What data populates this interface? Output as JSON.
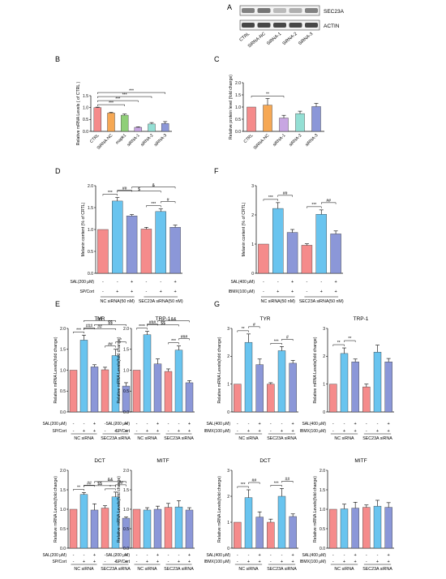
{
  "panel_letters": [
    "A",
    "B",
    "C",
    "D",
    "E",
    "F",
    "G"
  ],
  "colors": {
    "CTRL": "#f58b8b",
    "SiRNA-NC": "#f6a854",
    "mapk1": "#8fcf78",
    "siRNA-1": "#c8a6e2",
    "siRNA-2": "#93dfd4",
    "siRNA-3": "#8b97d8",
    "blue": "#69c4ef"
  },
  "western": {
    "band_labels": [
      "SEC23A",
      "ACTIN"
    ],
    "lanes": [
      "CTRL",
      "SiRNA-NC",
      "SiRNA-1",
      "SiRNA-2",
      "SiRNA-3"
    ],
    "sec23a_intensity": [
      0.55,
      0.6,
      0.3,
      0.35,
      0.55
    ],
    "actin_intensity": [
      0.8,
      0.8,
      0.8,
      0.8,
      0.8
    ]
  },
  "chart_data": [
    {
      "id": "B",
      "type": "bar",
      "ylabel": "Relative mRNA Levels ( of CTRL )",
      "ylim": [
        0,
        1.5
      ],
      "yticks": [
        "0.0",
        "0.5",
        "1.0",
        "1.5"
      ],
      "categories": [
        "CTRL",
        "SiRNA-NC",
        "mapk1",
        "siRNA-1",
        "siRNA-2",
        "siRNA-3"
      ],
      "values": [
        1.0,
        0.77,
        0.68,
        0.17,
        0.31,
        0.33
      ],
      "errors": [
        0.02,
        0.03,
        0.05,
        0.02,
        0.06,
        0.08
      ],
      "colors": [
        "#f58b8b",
        "#f6a854",
        "#8fcf78",
        "#c8a6e2",
        "#93dfd4",
        "#8b97d8"
      ],
      "annotations": [
        "***",
        "***",
        "***",
        "***"
      ]
    },
    {
      "id": "C",
      "type": "bar",
      "ylabel": "Relative protein level (fold change)",
      "ylim": [
        0,
        2.0
      ],
      "yticks": [
        "0.0",
        "0.5",
        "1.0",
        "1.5",
        "2.0"
      ],
      "categories": [
        "CTRL",
        "SiRNA-NC",
        "siRNA-1",
        "siRNA-2",
        "siRNA-3"
      ],
      "values": [
        1.0,
        1.08,
        0.55,
        0.73,
        1.02
      ],
      "errors": [
        0.0,
        0.27,
        0.11,
        0.1,
        0.13
      ],
      "colors": [
        "#f58b8b",
        "#f6a854",
        "#c8a6e2",
        "#93dfd4",
        "#8b97d8"
      ],
      "annotations": [
        "**"
      ]
    },
    {
      "id": "D",
      "type": "bar",
      "ylabel": "Melanin content (% of CRTL)",
      "ylim": [
        0,
        2.0
      ],
      "yticks": [
        "0.0",
        "0.5",
        "1.0",
        "1.5",
        "2.0"
      ],
      "values": [
        1.0,
        1.65,
        1.31,
        1.01,
        1.41,
        1.05
      ],
      "errors": [
        0.0,
        0.08,
        0.03,
        0.04,
        0.06,
        0.05
      ],
      "colors": [
        "#f58b8b",
        "#69c4ef",
        "#8b97d8",
        "#f58b8b",
        "#69c4ef",
        "#8b97d8"
      ],
      "row_labels": [
        "SAL(200 μM)",
        "SP/Cort"
      ],
      "row_signs": [
        [
          "-",
          "-",
          "+",
          "-",
          "-",
          "+"
        ],
        [
          "-",
          "+",
          "+",
          "-",
          "+",
          "+"
        ]
      ],
      "group_labels": [
        "NC siRNA(50 nM)",
        "SEC23A siRNA(50 nM)"
      ],
      "annotations": [
        "***",
        "##",
        "***",
        "#",
        "$",
        "&"
      ]
    },
    {
      "id": "F",
      "type": "bar",
      "ylabel": "Melanin content (% of CRTL)",
      "ylim": [
        0,
        3.0
      ],
      "yticks": [
        "0",
        "1",
        "2",
        "3"
      ],
      "values": [
        1.0,
        2.22,
        1.4,
        0.96,
        2.02,
        1.35
      ],
      "errors": [
        0.0,
        0.2,
        0.1,
        0.05,
        0.15,
        0.1
      ],
      "colors": [
        "#f58b8b",
        "#69c4ef",
        "#8b97d8",
        "#f58b8b",
        "#69c4ef",
        "#8b97d8"
      ],
      "row_labels": [
        "SAL(400 μM)",
        "IBMX(100 μM)"
      ],
      "row_signs": [
        [
          "-",
          "-",
          "+",
          "-",
          "-",
          "+"
        ],
        [
          "-",
          "+",
          "+",
          "-",
          "+",
          "+"
        ]
      ],
      "group_labels": [
        "NC siRNA(50 nM)",
        "SEC23A siRNA(50 nM)"
      ],
      "annotations": [
        "***",
        "##",
        "***",
        "##"
      ]
    },
    {
      "id": "E1",
      "type": "bar",
      "title": "TYR",
      "ylabel": "Relative mRNA Levels(fold change)",
      "ylim": [
        0,
        2.0
      ],
      "yticks": [
        "0.0",
        "0.5",
        "1.0",
        "1.5",
        "2.0"
      ],
      "values": [
        1.0,
        1.72,
        1.08,
        1.01,
        1.35,
        0.62
      ],
      "errors": [
        0.0,
        0.12,
        0.05,
        0.06,
        0.15,
        0.08
      ],
      "colors": [
        "#f58b8b",
        "#69c4ef",
        "#8b97d8",
        "#f58b8b",
        "#69c4ef",
        "#8b97d8"
      ],
      "row_labels": [
        "SAL(200 μM)",
        "SP/Cort"
      ],
      "row_signs": [
        [
          "-",
          "-",
          "+",
          "-",
          "-",
          "+"
        ],
        [
          "-",
          "+",
          "+",
          "-",
          "+",
          "+"
        ]
      ],
      "group_labels": [
        "NC siRNA",
        "SEC23A siRNA"
      ],
      "annotations": [
        "***",
        "###",
        "##",
        "*",
        "##",
        "$$",
        "&&"
      ]
    },
    {
      "id": "E2",
      "type": "bar",
      "title": "TRP-1",
      "ylabel": "Relative mRNA Levels(fold change)",
      "ylim": [
        0,
        2.0
      ],
      "yticks": [
        "0.0",
        "0.5",
        "1.0",
        "1.5",
        "2.0"
      ],
      "values": [
        1.0,
        1.85,
        1.15,
        0.97,
        1.48,
        0.7
      ],
      "errors": [
        0.0,
        0.08,
        0.12,
        0.06,
        0.1,
        0.05
      ],
      "colors": [
        "#f58b8b",
        "#69c4ef",
        "#8b97d8",
        "#f58b8b",
        "#69c4ef",
        "#8b97d8"
      ],
      "row_labels": [
        "SAL(200 μM)",
        "SP/Cort"
      ],
      "row_signs": [
        [
          "-",
          "-",
          "+",
          "-",
          "-",
          "+"
        ],
        [
          "-",
          "+",
          "+",
          "-",
          "+",
          "+"
        ]
      ],
      "group_labels": [
        "NC siRNA",
        "SEC23A siRNA"
      ],
      "annotations": [
        "****",
        "###",
        "***",
        "###",
        "$$",
        "&&"
      ]
    },
    {
      "id": "E3",
      "type": "bar",
      "title": "DCT",
      "ylabel": "Relative mRNA Levels(fold change)",
      "ylim": [
        0,
        2.0
      ],
      "yticks": [
        "0.0",
        "0.5",
        "1.0",
        "1.5",
        "2.0"
      ],
      "values": [
        1.0,
        1.38,
        0.98,
        1.03,
        1.32,
        0.77
      ],
      "errors": [
        0.0,
        0.05,
        0.16,
        0.06,
        0.12,
        0.03
      ],
      "colors": [
        "#f58b8b",
        "#69c4ef",
        "#8b97d8",
        "#f58b8b",
        "#69c4ef",
        "#8b97d8"
      ],
      "row_labels": [
        "SAL(200 μM)",
        "SP/Cort"
      ],
      "row_signs": [
        [
          "-",
          "-",
          "+",
          "-",
          "-",
          "+"
        ],
        [
          "-",
          "+",
          "+",
          "-",
          "+",
          "+"
        ]
      ],
      "group_labels": [
        "NC siRNA",
        "SEC23A siRNA"
      ],
      "annotations": [
        "**",
        "##",
        "*",
        "##",
        "$$",
        "&&"
      ]
    },
    {
      "id": "E4",
      "type": "bar",
      "title": "MITF",
      "ylabel": "Relative mRNA Levels(fold change)",
      "ylim": [
        0,
        2.0
      ],
      "yticks": [
        "0.0",
        "0.5",
        "1.0",
        "1.5",
        "2.0"
      ],
      "values": [
        1.0,
        0.98,
        1.0,
        1.05,
        1.06,
        0.98
      ],
      "errors": [
        0.0,
        0.06,
        0.08,
        0.1,
        0.16,
        0.06
      ],
      "colors": [
        "#f58b8b",
        "#69c4ef",
        "#8b97d8",
        "#f58b8b",
        "#69c4ef",
        "#8b97d8"
      ],
      "row_labels": [
        "SAL(200 μM)",
        "SP/Cort"
      ],
      "row_signs": [
        [
          "-",
          "-",
          "+",
          "-",
          "-",
          "+"
        ],
        [
          "-",
          "+",
          "+",
          "-",
          "+",
          "+"
        ]
      ],
      "group_labels": [
        "NC siRNA",
        "SEC23A siRNA"
      ],
      "annotations": []
    },
    {
      "id": "G1",
      "type": "bar",
      "title": "TYR",
      "ylabel": "Relative mRNA Levels(fold change)",
      "ylim": [
        0,
        3.0
      ],
      "yticks": [
        "0",
        "1",
        "2",
        "3"
      ],
      "values": [
        1.0,
        2.5,
        1.7,
        1.0,
        2.2,
        1.75
      ],
      "errors": [
        0.0,
        0.3,
        0.2,
        0.05,
        0.15,
        0.1
      ],
      "colors": [
        "#f58b8b",
        "#69c4ef",
        "#8b97d8",
        "#f58b8b",
        "#69c4ef",
        "#8b97d8"
      ],
      "row_labels": [
        "SAL(400 μM)",
        "IBMX(100 μM)"
      ],
      "row_signs": [
        [
          "-",
          "-",
          "+",
          "-",
          "-",
          "+"
        ],
        [
          "-",
          "+",
          "+",
          "-",
          "+",
          "+"
        ]
      ],
      "group_labels": [
        "NC siRNA",
        "SEC23A siRNA"
      ],
      "annotations": [
        "**",
        "#",
        "***",
        "#"
      ]
    },
    {
      "id": "G2",
      "type": "bar",
      "title": "TRP-1",
      "ylabel": "Relative mRNA Levels(fold change)",
      "ylim": [
        0,
        3.0
      ],
      "yticks": [
        "0",
        "1",
        "2",
        "3"
      ],
      "values": [
        1.0,
        2.1,
        1.8,
        0.9,
        2.15,
        1.8
      ],
      "errors": [
        0.0,
        0.2,
        0.1,
        0.1,
        0.25,
        0.12
      ],
      "colors": [
        "#f58b8b",
        "#69c4ef",
        "#8b97d8",
        "#f58b8b",
        "#69c4ef",
        "#8b97d8"
      ],
      "row_labels": [
        "SAL(400 μM)",
        "IBMX(100 μM)"
      ],
      "row_signs": [
        [
          "-",
          "-",
          "+",
          "-",
          "-",
          "+"
        ],
        [
          "-",
          "+",
          "+",
          "-",
          "+",
          "+"
        ]
      ],
      "group_labels": [
        "NC siRNA",
        "SEC23A siRNA"
      ],
      "annotations": [
        "**",
        "**"
      ]
    },
    {
      "id": "G3",
      "type": "bar",
      "title": "DCT",
      "ylabel": "Relative mRNA Levels(fold change)",
      "ylim": [
        0,
        3.0
      ],
      "yticks": [
        "0",
        "1",
        "2",
        "3"
      ],
      "values": [
        1.0,
        1.95,
        1.2,
        1.0,
        2.0,
        1.22
      ],
      "errors": [
        0.0,
        0.3,
        0.2,
        0.12,
        0.3,
        0.1
      ],
      "colors": [
        "#f58b8b",
        "#69c4ef",
        "#8b97d8",
        "#f58b8b",
        "#69c4ef",
        "#8b97d8"
      ],
      "row_labels": [
        "SAL(400 μM)",
        "IBMX(100 μM)"
      ],
      "row_signs": [
        [
          "-",
          "-",
          "+",
          "-",
          "-",
          "+"
        ],
        [
          "-",
          "+",
          "+",
          "-",
          "+",
          "+"
        ]
      ],
      "group_labels": [
        "NC siRNA",
        "SEC23A siRNA"
      ],
      "annotations": [
        "***",
        "##",
        "***",
        "##"
      ]
    },
    {
      "id": "G4",
      "type": "bar",
      "title": "MITF",
      "ylabel": "Relative mRNA Levels(fold change)",
      "ylim": [
        0,
        2.0
      ],
      "yticks": [
        "0.0",
        "0.5",
        "1.0",
        "1.5",
        "2.0"
      ],
      "values": [
        1.0,
        1.01,
        1.03,
        1.05,
        1.08,
        1.05
      ],
      "errors": [
        0.0,
        0.12,
        0.15,
        0.06,
        0.15,
        0.12
      ],
      "colors": [
        "#f58b8b",
        "#69c4ef",
        "#8b97d8",
        "#f58b8b",
        "#69c4ef",
        "#8b97d8"
      ],
      "row_labels": [
        "SAL(400 μM)",
        "IBMX(100 μM)"
      ],
      "row_signs": [
        [
          "-",
          "-",
          "+",
          "-",
          "-",
          "+"
        ],
        [
          "-",
          "+",
          "+",
          "-",
          "+",
          "+"
        ]
      ],
      "group_labels": [
        "NC siRNA",
        "SEC23A siRNA"
      ],
      "annotations": []
    }
  ]
}
